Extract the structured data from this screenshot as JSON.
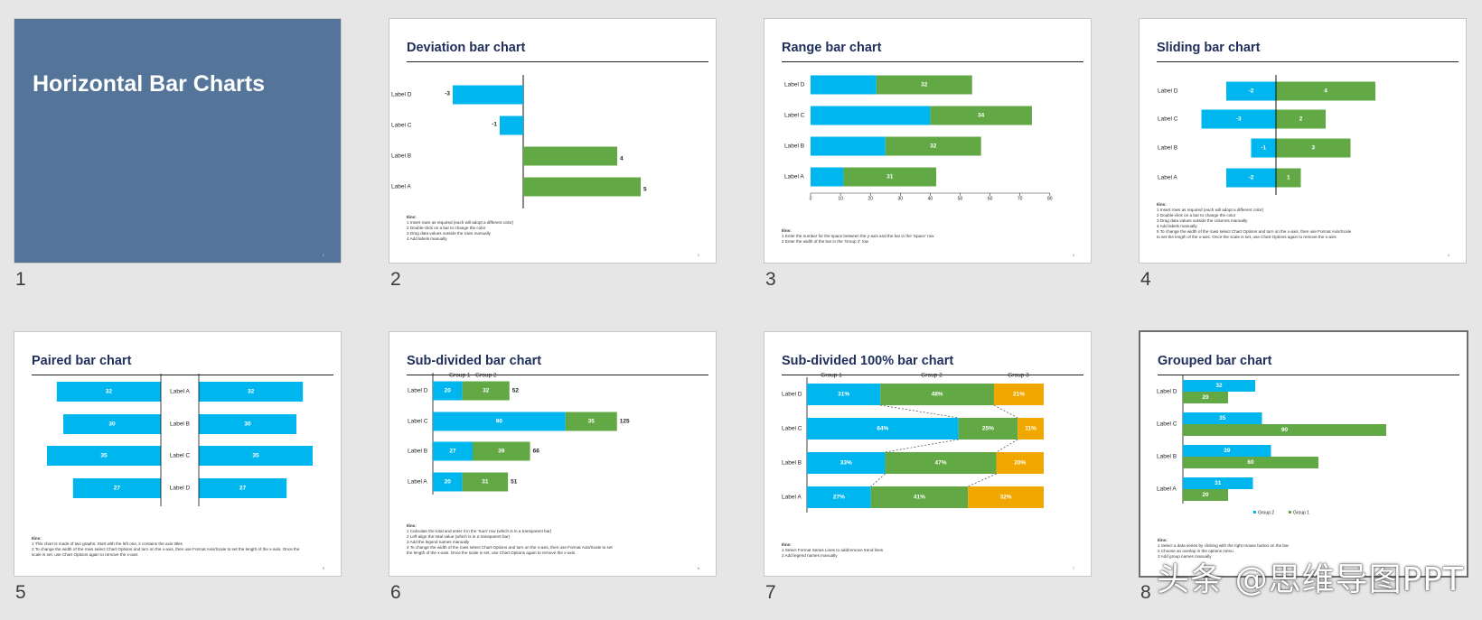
{
  "colors": {
    "blue": "#00b6ee",
    "green": "#62a844",
    "orange": "#f0a800",
    "title_bg": "#547599",
    "heading": "#1f2f5c"
  },
  "slides": [
    {
      "num": "1",
      "title": "Horizontal Bar Charts",
      "page": "1"
    },
    {
      "num": "2",
      "title": "Deviation bar chart",
      "page": "2",
      "notes_head": "Ilins:",
      "notes": [
        "1  Insert rows as required (each will adopt a different color)",
        "2  Double-click on a bar to change the color",
        "3  Drag data values outside the rows manually",
        "4  Add labels manually"
      ]
    },
    {
      "num": "3",
      "title": "Range bar chart",
      "page": "3",
      "notes_head": "Ilins:",
      "notes": [
        "1  Enter the number for the space between the y-axis and the bar in the 'Space' row",
        "2  Enter the width of the bar in the 'Group 2' row"
      ]
    },
    {
      "num": "4",
      "title": "Sliding bar chart",
      "page": "4",
      "notes_head": "Ilins:",
      "notes": [
        "1  Insert rows as required (each will adopt a different color)",
        "2  Double-click on a bar to change the color",
        "3  Drag data values outside the columns manually",
        "4  Add labels manually",
        "5  To change the width of the rows select Chart Options and turn on the x-axis, then use Format Axis/Scale",
        "    to set the length of the x-axis. Once the scale is set, use Chart Options again to remove the x-axis"
      ]
    },
    {
      "num": "5",
      "title": "Paired bar chart",
      "page": "5",
      "notes_head": "Ilins:",
      "notes": [
        "1  This chart is made of two graphs. Start with the left one, it contains the axis titles",
        "2  To change the width of the rows select Chart Options and turn on the x-axis, then use Format Axis/Scale to set the length of the x-axis. Once the",
        "    scale is set, use Chart Options again to remove the x-axis"
      ]
    },
    {
      "num": "6",
      "title": "Sub-divided bar chart",
      "page": "6",
      "notes_head": "Ilins:",
      "notes": [
        "1  Calculate the total and enter it in the 'Sum' row (which is in a transparent bar)",
        "2  Left align the total value (which is in a transparent bar)",
        "3  Add the legend names manually",
        "4  To change the width of the rows select Chart Options and turn on the x-axis, then use Format Axis/Scale to set",
        "    the length of the x-axis. Once the scale is set, use Chart Options again to remove the x-axis"
      ]
    },
    {
      "num": "7",
      "title": "Sub-divided 100% bar chart",
      "page": "7",
      "notes_head": "Ilins:",
      "notes": [
        "1  Select Format Series Lines to add/remove trend lines",
        "2  Add legend names manually"
      ]
    },
    {
      "num": "8",
      "title": "Grouped bar chart",
      "page": "8",
      "notes_head": "Ilins:",
      "notes": [
        "1  Select a data series by clicking with the right mouse button on the bar",
        "2  Choose an overlap in the options menu",
        "3  Add group names manually"
      ]
    }
  ],
  "chart_data": [
    {
      "type": "bar",
      "title": "Deviation bar chart",
      "categories": [
        "Label D",
        "Label C",
        "Label B",
        "Label A"
      ],
      "values": [
        -3,
        -1,
        4,
        5
      ]
    },
    {
      "type": "bar",
      "title": "Range bar chart",
      "categories": [
        "Label D",
        "Label C",
        "Label B",
        "Label A"
      ],
      "series": [
        {
          "values": [
            22,
            40,
            25,
            11
          ]
        },
        {
          "values": [
            32,
            34,
            32,
            31
          ]
        }
      ],
      "xticks": [
        "0",
        "10",
        "20",
        "30",
        "40",
        "50",
        "60",
        "70",
        "80"
      ],
      "xlim": [
        0,
        80
      ]
    },
    {
      "type": "bar",
      "title": "Sliding bar chart",
      "categories": [
        "Label D",
        "Label C",
        "Label B",
        "Label A"
      ],
      "series": [
        {
          "values": [
            -2,
            -3,
            -1,
            -2
          ]
        },
        {
          "values": [
            4,
            2,
            3,
            1
          ]
        }
      ]
    },
    {
      "type": "bar",
      "title": "Paired bar chart",
      "categories": [
        "Label A",
        "Label B",
        "Label C",
        "Label D"
      ],
      "series": [
        {
          "values": [
            32,
            30,
            35,
            27
          ]
        },
        {
          "values": [
            32,
            30,
            35,
            27
          ]
        }
      ]
    },
    {
      "type": "bar",
      "title": "Sub-divided bar chart",
      "categories": [
        "Label D",
        "Label C",
        "Label B",
        "Label A"
      ],
      "series": [
        {
          "name": "Group 1",
          "values": [
            20,
            90,
            27,
            20
          ]
        },
        {
          "name": "Group 2",
          "values": [
            32,
            35,
            39,
            31
          ]
        }
      ],
      "totals": [
        52,
        125,
        66,
        51
      ]
    },
    {
      "type": "bar",
      "title": "Sub-divided 100% bar chart",
      "categories": [
        "Label D",
        "Label C",
        "Label B",
        "Label A"
      ],
      "series": [
        {
          "name": "Group 1",
          "values": [
            31,
            64,
            33,
            27
          ]
        },
        {
          "name": "Group 2",
          "values": [
            48,
            25,
            47,
            41
          ]
        },
        {
          "name": "Group 3",
          "values": [
            21,
            11,
            20,
            32
          ]
        }
      ]
    },
    {
      "type": "bar",
      "title": "Grouped bar chart",
      "categories": [
        "Label D",
        "Label C",
        "Label B",
        "Label A"
      ],
      "series": [
        {
          "name": "Group 2",
          "values": [
            32,
            35,
            39,
            31
          ]
        },
        {
          "name": "Group 1",
          "values": [
            20,
            90,
            60,
            20
          ]
        }
      ]
    }
  ],
  "watermark": "头条 @思维导图PPT"
}
